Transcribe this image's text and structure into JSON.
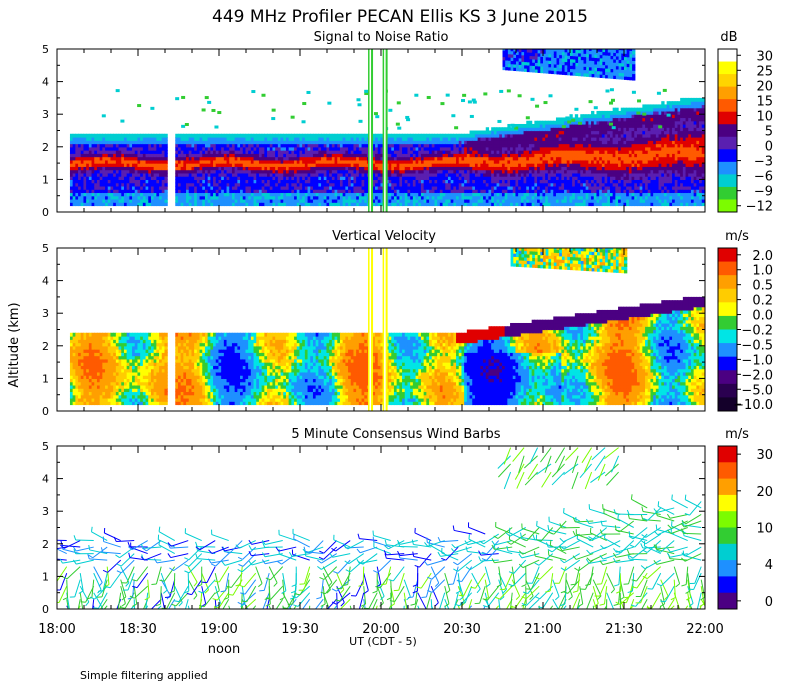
{
  "chart_data": {
    "type": "heatmap",
    "title": "449 MHz Profiler PECAN Ellis KS  3 June 2015",
    "ylabel": "Altitude (km)",
    "xlabel": "UT  (CDT - 5)",
    "x_tick_labels": [
      "18:00",
      "18:30",
      "19:00",
      "19:30",
      "20:00",
      "20:30",
      "21:00",
      "21:30",
      "22:00"
    ],
    "x_range_hours": [
      18,
      22
    ],
    "y_range_km": [
      0,
      5
    ],
    "y_tick_labels": [
      "0",
      "1",
      "2",
      "3",
      "4",
      "5"
    ],
    "noon_label": "noon",
    "footnote": "Simple filtering applied",
    "panels": [
      {
        "title": "Signal to Noise Ratio",
        "units": "dB",
        "colorbar_labels": [
          "30",
          "25",
          "20",
          "15",
          "10",
          "5",
          "0",
          "−3",
          "−6",
          "−9",
          "−12"
        ],
        "colorbar_colors": [
          "#ffffff",
          "#ffff00",
          "#ffd400",
          "#ff9f00",
          "#ff5a00",
          "#e00000",
          "#4b0082",
          "#5a1fb0",
          "#0000ff",
          "#1e90ff",
          "#00ced1",
          "#32cd32",
          "#7cfc00"
        ]
      },
      {
        "title": "Vertical Velocity",
        "units": "m/s",
        "colorbar_labels": [
          "2.0",
          "1.0",
          "0.5",
          "0.2",
          "0.0",
          "−0.2",
          "−0.5",
          "−1.0",
          "−2.0",
          "−5.0",
          "−10.0"
        ],
        "colorbar_colors": [
          "#e00000",
          "#ff5a00",
          "#ff9f00",
          "#ffcc00",
          "#ffff00",
          "#33cc33",
          "#00e5e5",
          "#1e90ff",
          "#0000ff",
          "#4b0082",
          "#2a0050",
          "#14002a"
        ]
      },
      {
        "title": "5 Minute Consensus Wind Barbs",
        "units": "m/s",
        "colorbar_labels": [
          "30",
          "20",
          "10",
          "4",
          "0"
        ],
        "colorbar_colors": [
          "#e00000",
          "#ff5a00",
          "#ff9f00",
          "#ffff00",
          "#7cfc00",
          "#32cd32",
          "#00ced1",
          "#1e90ff",
          "#0000ff",
          "#4b0082"
        ]
      }
    ]
  }
}
